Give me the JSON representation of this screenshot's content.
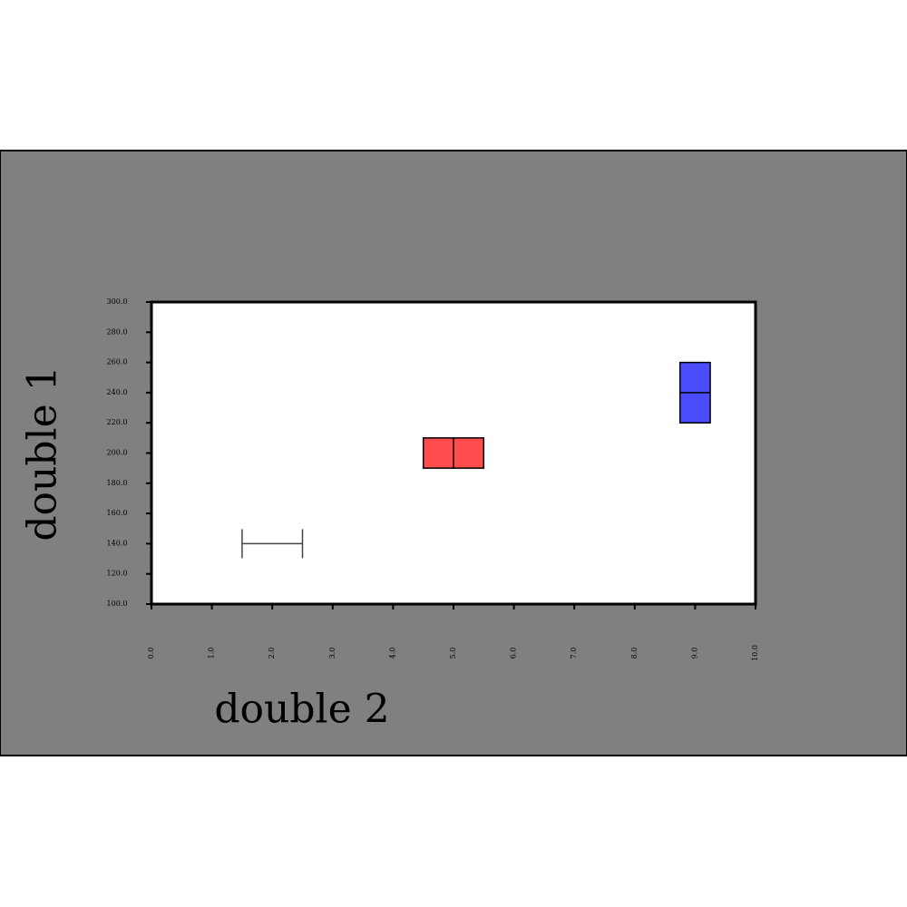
{
  "chart_data": {
    "type": "errorbox",
    "x_label": "double 2",
    "y_label": "double 1",
    "x": [
      2.0,
      5.0,
      9.0
    ],
    "values": [
      140,
      200,
      240
    ],
    "xerr": [
      0.5,
      0.5,
      0.25
    ],
    "yerr": [
      null,
      10,
      20
    ],
    "colors": [
      "#444444",
      "#ff4c4c",
      "#4c4cff"
    ],
    "xlim": [
      0,
      10
    ],
    "xticks": [
      {
        "value": 0,
        "label": "0.0"
      },
      {
        "value": 1,
        "label": "1.0"
      },
      {
        "value": 2,
        "label": "2.0"
      },
      {
        "value": 3,
        "label": "3.0"
      },
      {
        "value": 4,
        "label": "4.0"
      },
      {
        "value": 5,
        "label": "5.0"
      },
      {
        "value": 6,
        "label": "6.0"
      },
      {
        "value": 7,
        "label": "7.0"
      },
      {
        "value": 8,
        "label": "8.0"
      },
      {
        "value": 9,
        "label": "9.0"
      },
      {
        "value": 10,
        "label": "10.0"
      }
    ],
    "ylim": [
      100,
      300
    ],
    "yticks": [
      {
        "value": 100,
        "label": "100.0"
      },
      {
        "value": 120,
        "label": "120.0"
      },
      {
        "value": 140,
        "label": "140.0"
      },
      {
        "value": 160,
        "label": "160.0"
      },
      {
        "value": 180,
        "label": "180.0"
      },
      {
        "value": 200,
        "label": "200.0"
      },
      {
        "value": 220,
        "label": "220.0"
      },
      {
        "value": 240,
        "label": "240.0"
      },
      {
        "value": 260,
        "label": "260.0"
      },
      {
        "value": 280,
        "label": "280.0"
      },
      {
        "value": 300,
        "label": "300.0"
      }
    ]
  }
}
